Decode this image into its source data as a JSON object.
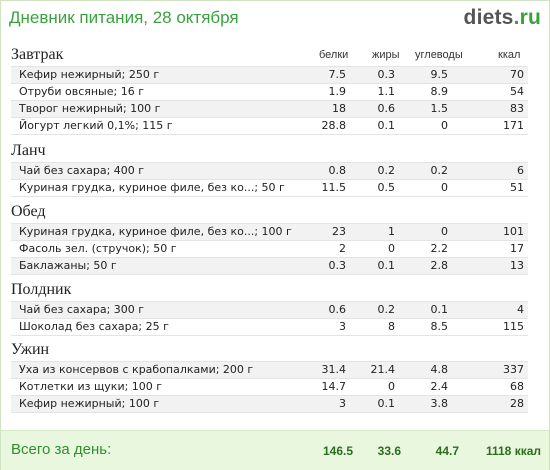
{
  "header": {
    "title": "Дневник питания, 28 октября",
    "logo_main": "diets",
    "logo_tld": ".ru"
  },
  "columns": {
    "protein": "белки",
    "fat": "жиры",
    "carbs": "углеводы",
    "kcal": "ккал"
  },
  "meals": [
    {
      "name": "Завтрак",
      "items": [
        {
          "name": "Кефир нежирный; 250 г",
          "protein": "7.5",
          "fat": "0.3",
          "carbs": "9.5",
          "kcal": "70"
        },
        {
          "name": "Отруби овсяные; 16 г",
          "protein": "1.9",
          "fat": "1.1",
          "carbs": "8.9",
          "kcal": "54"
        },
        {
          "name": "Творог нежирный; 100 г",
          "protein": "18",
          "fat": "0.6",
          "carbs": "1.5",
          "kcal": "83"
        },
        {
          "name": "Йогурт легкий 0,1%; 115 г",
          "protein": "28.8",
          "fat": "0.1",
          "carbs": "0",
          "kcal": "171"
        }
      ]
    },
    {
      "name": "Ланч",
      "items": [
        {
          "name": "Чай без сахара; 400 г",
          "protein": "0.8",
          "fat": "0.2",
          "carbs": "0.2",
          "kcal": "6"
        },
        {
          "name": "Куриная грудка, куриное филе, без ко...; 50 г",
          "protein": "11.5",
          "fat": "0.5",
          "carbs": "0",
          "kcal": "51"
        }
      ]
    },
    {
      "name": "Обед",
      "items": [
        {
          "name": "Куриная грудка, куриное филе, без ко...; 100 г",
          "protein": "23",
          "fat": "1",
          "carbs": "0",
          "kcal": "101"
        },
        {
          "name": "Фасоль зел. (стручок); 50 г",
          "protein": "2",
          "fat": "0",
          "carbs": "2.2",
          "kcal": "17"
        },
        {
          "name": "Баклажаны; 50 г",
          "protein": "0.3",
          "fat": "0.1",
          "carbs": "2.8",
          "kcal": "13"
        }
      ]
    },
    {
      "name": "Полдник",
      "items": [
        {
          "name": "Чай без сахара; 300 г",
          "protein": "0.6",
          "fat": "0.2",
          "carbs": "0.1",
          "kcal": "4"
        },
        {
          "name": "Шоколад без сахара; 25 г",
          "protein": "3",
          "fat": "8",
          "carbs": "8.5",
          "kcal": "115"
        }
      ]
    },
    {
      "name": "Ужин",
      "items": [
        {
          "name": "Уха из консервов с крабопалками; 200 г",
          "protein": "31.4",
          "fat": "21.4",
          "carbs": "4.8",
          "kcal": "337"
        },
        {
          "name": "Котлетки из щуки; 100 г",
          "protein": "14.7",
          "fat": "0",
          "carbs": "2.4",
          "kcal": "68"
        },
        {
          "name": "Кефир нежирный; 100 г",
          "protein": "3",
          "fat": "0.1",
          "carbs": "3.8",
          "kcal": "28"
        }
      ]
    }
  ],
  "totals": {
    "label": "Всего за день:",
    "protein": "146.5",
    "fat": "33.6",
    "carbs": "44.7",
    "kcal": "1118 ккал"
  }
}
